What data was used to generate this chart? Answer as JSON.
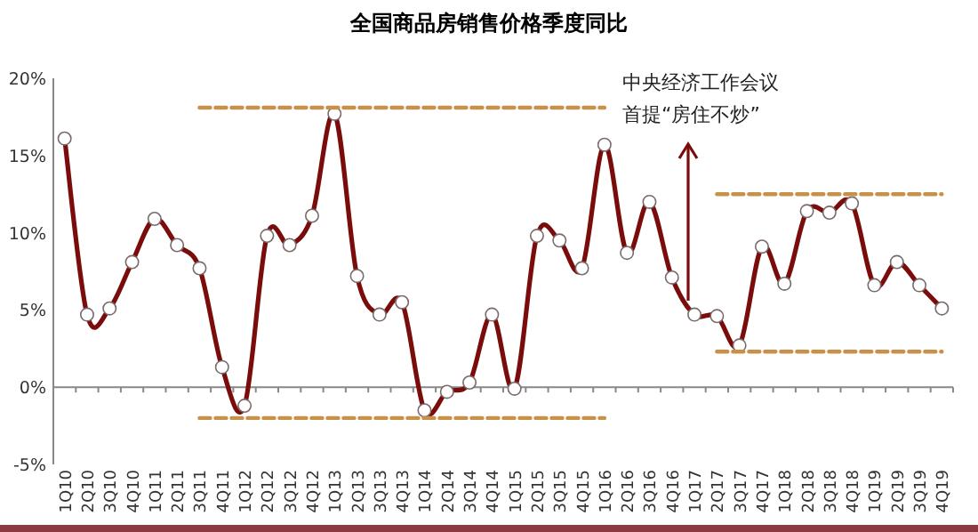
{
  "chart_data": {
    "type": "line",
    "title": "全国商品房销售价格季度同比",
    "categories": [
      "1Q10",
      "2Q10",
      "3Q10",
      "4Q10",
      "1Q11",
      "2Q11",
      "3Q11",
      "4Q11",
      "1Q12",
      "2Q12",
      "3Q12",
      "4Q12",
      "1Q13",
      "2Q13",
      "3Q13",
      "4Q13",
      "1Q14",
      "2Q14",
      "3Q14",
      "4Q14",
      "1Q15",
      "2Q15",
      "3Q15",
      "4Q15",
      "1Q16",
      "2Q16",
      "3Q16",
      "4Q16",
      "1Q17",
      "2Q17",
      "3Q17",
      "4Q17",
      "1Q18",
      "2Q18",
      "3Q18",
      "4Q18",
      "1Q19",
      "2Q19",
      "3Q19",
      "4Q19"
    ],
    "series": [
      {
        "color": "#7b0c0c",
        "marker": "circle",
        "line_style": "solid",
        "values": [
          16.1,
          4.7,
          5.1,
          8.1,
          10.9,
          9.2,
          7.7,
          1.3,
          -1.2,
          9.8,
          9.2,
          11.1,
          17.7,
          7.2,
          4.7,
          5.5,
          -1.5,
          -0.3,
          0.3,
          4.7,
          -0.1,
          9.8,
          9.5,
          7.7,
          15.7,
          8.7,
          12.0,
          7.1,
          4.7,
          4.6,
          2.7,
          9.1,
          6.7,
          11.4,
          11.3,
          11.9,
          6.6,
          8.1,
          6.6,
          5.1
        ]
      },
      {
        "color": "#c8914a",
        "marker": "none",
        "line_style": "dashed",
        "x": [
          "3Q11",
          "1Q16"
        ],
        "values": [
          18.1,
          18.1
        ]
      },
      {
        "color": "#c8914a",
        "marker": "none",
        "line_style": "dashed",
        "x": [
          "3Q11",
          "1Q16"
        ],
        "values": [
          -2,
          -2
        ]
      },
      {
        "color": "#c8914a",
        "marker": "none",
        "line_style": "dashed",
        "x": [
          "2Q17",
          "4Q19"
        ],
        "values": [
          12.5,
          12.5
        ]
      },
      {
        "color": "#c8914a",
        "marker": "none",
        "line_style": "dashed",
        "x": [
          "2Q17",
          "4Q19"
        ],
        "values": [
          2.3,
          2.3
        ]
      }
    ],
    "ylim": [
      -5,
      20
    ],
    "yticks": [
      {
        "value": -5,
        "label": "-5%"
      },
      {
        "value": 0,
        "label": "0%"
      },
      {
        "value": 5,
        "label": "5%"
      },
      {
        "value": 10,
        "label": "10%"
      },
      {
        "value": 15,
        "label": "15%"
      },
      {
        "value": 20,
        "label": "20%"
      }
    ],
    "annotations": [
      "中央经济工作会议",
      {
        "text": "首提“房住不炒”",
        "y": 5.6
      }
    ]
  }
}
